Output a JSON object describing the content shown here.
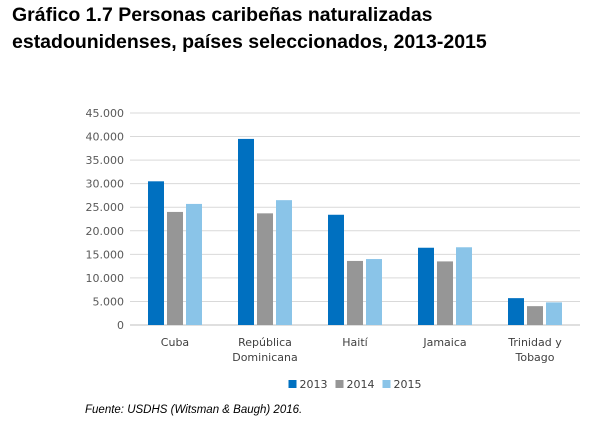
{
  "figure": {
    "title_line1": "Gráfico 1.7 Personas caribeñas naturalizadas",
    "title_line2": "estadounidenses, países seleccionados, 2013-2015",
    "source": "Fuente: USDHS (Witsman & Baugh) 2016."
  },
  "chart_data": {
    "type": "bar",
    "title": "Gráfico 1.7 Personas caribeñas naturalizadas estadounidenses, países seleccionados, 2013-2015",
    "xlabel": "",
    "ylabel": "",
    "categories": [
      [
        "Cuba"
      ],
      [
        "República",
        "Dominicana"
      ],
      [
        "Haití"
      ],
      [
        "Jamaica"
      ],
      [
        "Trinidad y",
        "Tobago"
      ]
    ],
    "series": [
      {
        "name": "2013",
        "color": "#0070c0",
        "values": [
          30500,
          39500,
          23400,
          16400,
          5700
        ]
      },
      {
        "name": "2014",
        "color": "#969696",
        "values": [
          24000,
          23700,
          13600,
          13500,
          4000
        ]
      },
      {
        "name": "2015",
        "color": "#8ac4e8",
        "values": [
          25700,
          26500,
          14000,
          16500,
          4800
        ]
      }
    ],
    "ylim": [
      0,
      45000
    ],
    "yticks": [
      0,
      5000,
      10000,
      15000,
      20000,
      25000,
      30000,
      35000,
      40000,
      45000
    ],
    "ytick_labels": [
      "0",
      "5.000",
      "10.000",
      "15.000",
      "20.000",
      "25.000",
      "30.000",
      "35.000",
      "40.000",
      "45.000"
    ],
    "grid": true,
    "legend_position": "bottom-center"
  }
}
